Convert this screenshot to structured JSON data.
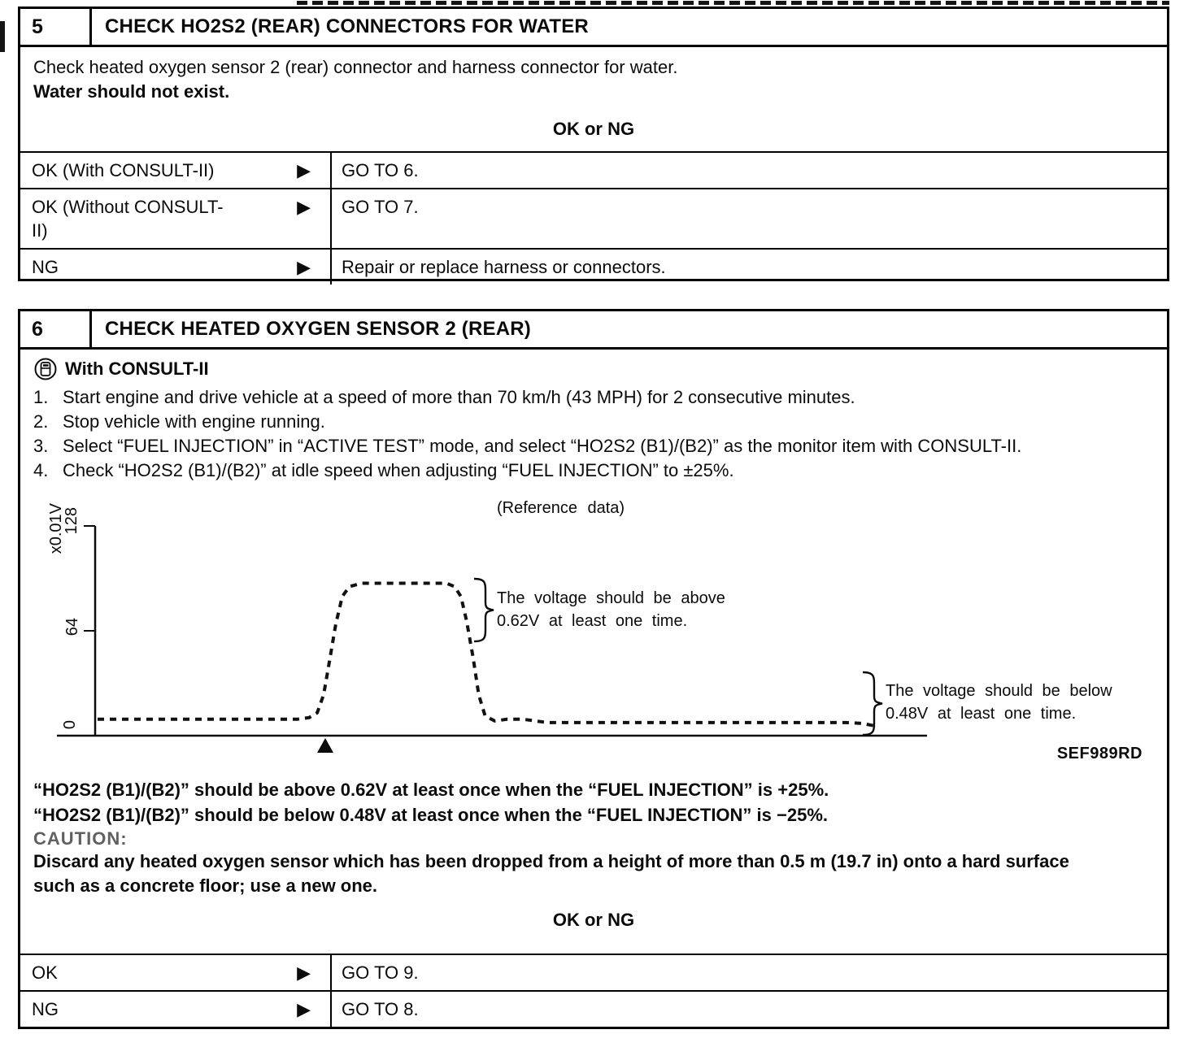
{
  "box5": {
    "number": "5",
    "title": "CHECK HO2S2 (REAR) CONNECTORS FOR WATER",
    "body_line1": "Check heated oxygen sensor 2 (rear) connector and harness connector for water.",
    "body_line2": "Water should not exist.",
    "decision_label": "OK or NG",
    "rows": [
      {
        "condition": "OK (With CONSULT-II)",
        "action": "GO TO 6."
      },
      {
        "condition": "OK (Without CONSULT-II)",
        "action": "GO TO 7."
      },
      {
        "condition": "NG",
        "action": "Repair or replace harness or connectors."
      }
    ]
  },
  "box6": {
    "number": "6",
    "title": "CHECK HEATED OXYGEN SENSOR 2 (REAR)",
    "consult_label": "With CONSULT-II",
    "steps": [
      {
        "num": "1.",
        "text": "Start engine and drive vehicle at a speed of more than 70 km/h (43 MPH) for 2 consecutive minutes."
      },
      {
        "num": "2.",
        "text": "Stop vehicle with engine running."
      },
      {
        "num": "3.",
        "text": "Select “FUEL INJECTION” in “ACTIVE TEST” mode, and select “HO2S2 (B1)/(B2)” as the monitor item with CONSULT-II."
      },
      {
        "num": "4.",
        "text": "Check “HO2S2 (B1)/(B2)” at idle speed when adjusting “FUEL INJECTION” to ±25%."
      }
    ],
    "figure": {
      "note": "(Reference data)",
      "y_axis_unit": "x0.01V",
      "tick_128": "128",
      "tick_64": "64",
      "tick_0": "0",
      "annotation_above_line1": "The voltage should be above",
      "annotation_above_line2": "0.62V at least one time.",
      "annotation_below_line1": "The voltage should be below",
      "annotation_below_line2": "0.48V at least one time.",
      "figure_id": "SEF989RD"
    },
    "result_line1": "“HO2S2 (B1)/(B2)” should be above 0.62V at least once when the “FUEL INJECTION” is +25%.",
    "result_line2": "“HO2S2 (B1)/(B2)” should be below 0.48V at least once when the “FUEL INJECTION” is −25%.",
    "caution_label": "CAUTION:",
    "caution_text": "Discard any heated oxygen sensor which has been dropped from a height of more than 0.5 m (19.7 in) onto a hard surface such as a concrete floor; use a new one.",
    "decision_label": "OK or NG",
    "rows": [
      {
        "condition": "OK",
        "action": "GO TO 9."
      },
      {
        "condition": "NG",
        "action": "GO TO 8."
      }
    ]
  },
  "glyphs": {
    "arrow": "▶"
  },
  "colors": {
    "ink": "#0b0b0b",
    "paper": "#ffffff",
    "caution_gray": "#606060"
  },
  "chart_data": {
    "type": "line",
    "title": "(Reference data)",
    "xlabel": "",
    "ylabel": "x0.01V",
    "yticks": [
      0,
      64,
      128
    ],
    "ylim": [
      0,
      128
    ],
    "grid": false,
    "line_style": "dotted",
    "series": [
      {
        "name": "HO2S2 (B1)/(B2) output voltage (x0.01V)",
        "x_percent": [
          0.3,
          25,
          26.5,
          27.5,
          28.3,
          29,
          29.8,
          30.6,
          31.5,
          33,
          43.5,
          44.5,
          45.3,
          46,
          46.8,
          47.5,
          48.3,
          49.5,
          51,
          53,
          56,
          93,
          95,
          96.5
        ],
        "values": [
          10,
          10,
          11,
          14,
          25,
          45,
          68,
          85,
          91,
          93,
          93,
          91,
          85,
          70,
          48,
          25,
          12,
          9,
          10,
          10,
          8,
          8,
          7.5,
          6
        ]
      }
    ],
    "annotations": [
      {
        "text": "The voltage should be above 0.62V at least one time.",
        "target": "high plateau (~0.93V)"
      },
      {
        "text": "The voltage should be below 0.48V at least one time.",
        "target": "low tail (~0.08V)"
      }
    ],
    "marker": "solid up-triangle on x-axis at fuel-injection step point (~28.5%)",
    "legend": false
  }
}
